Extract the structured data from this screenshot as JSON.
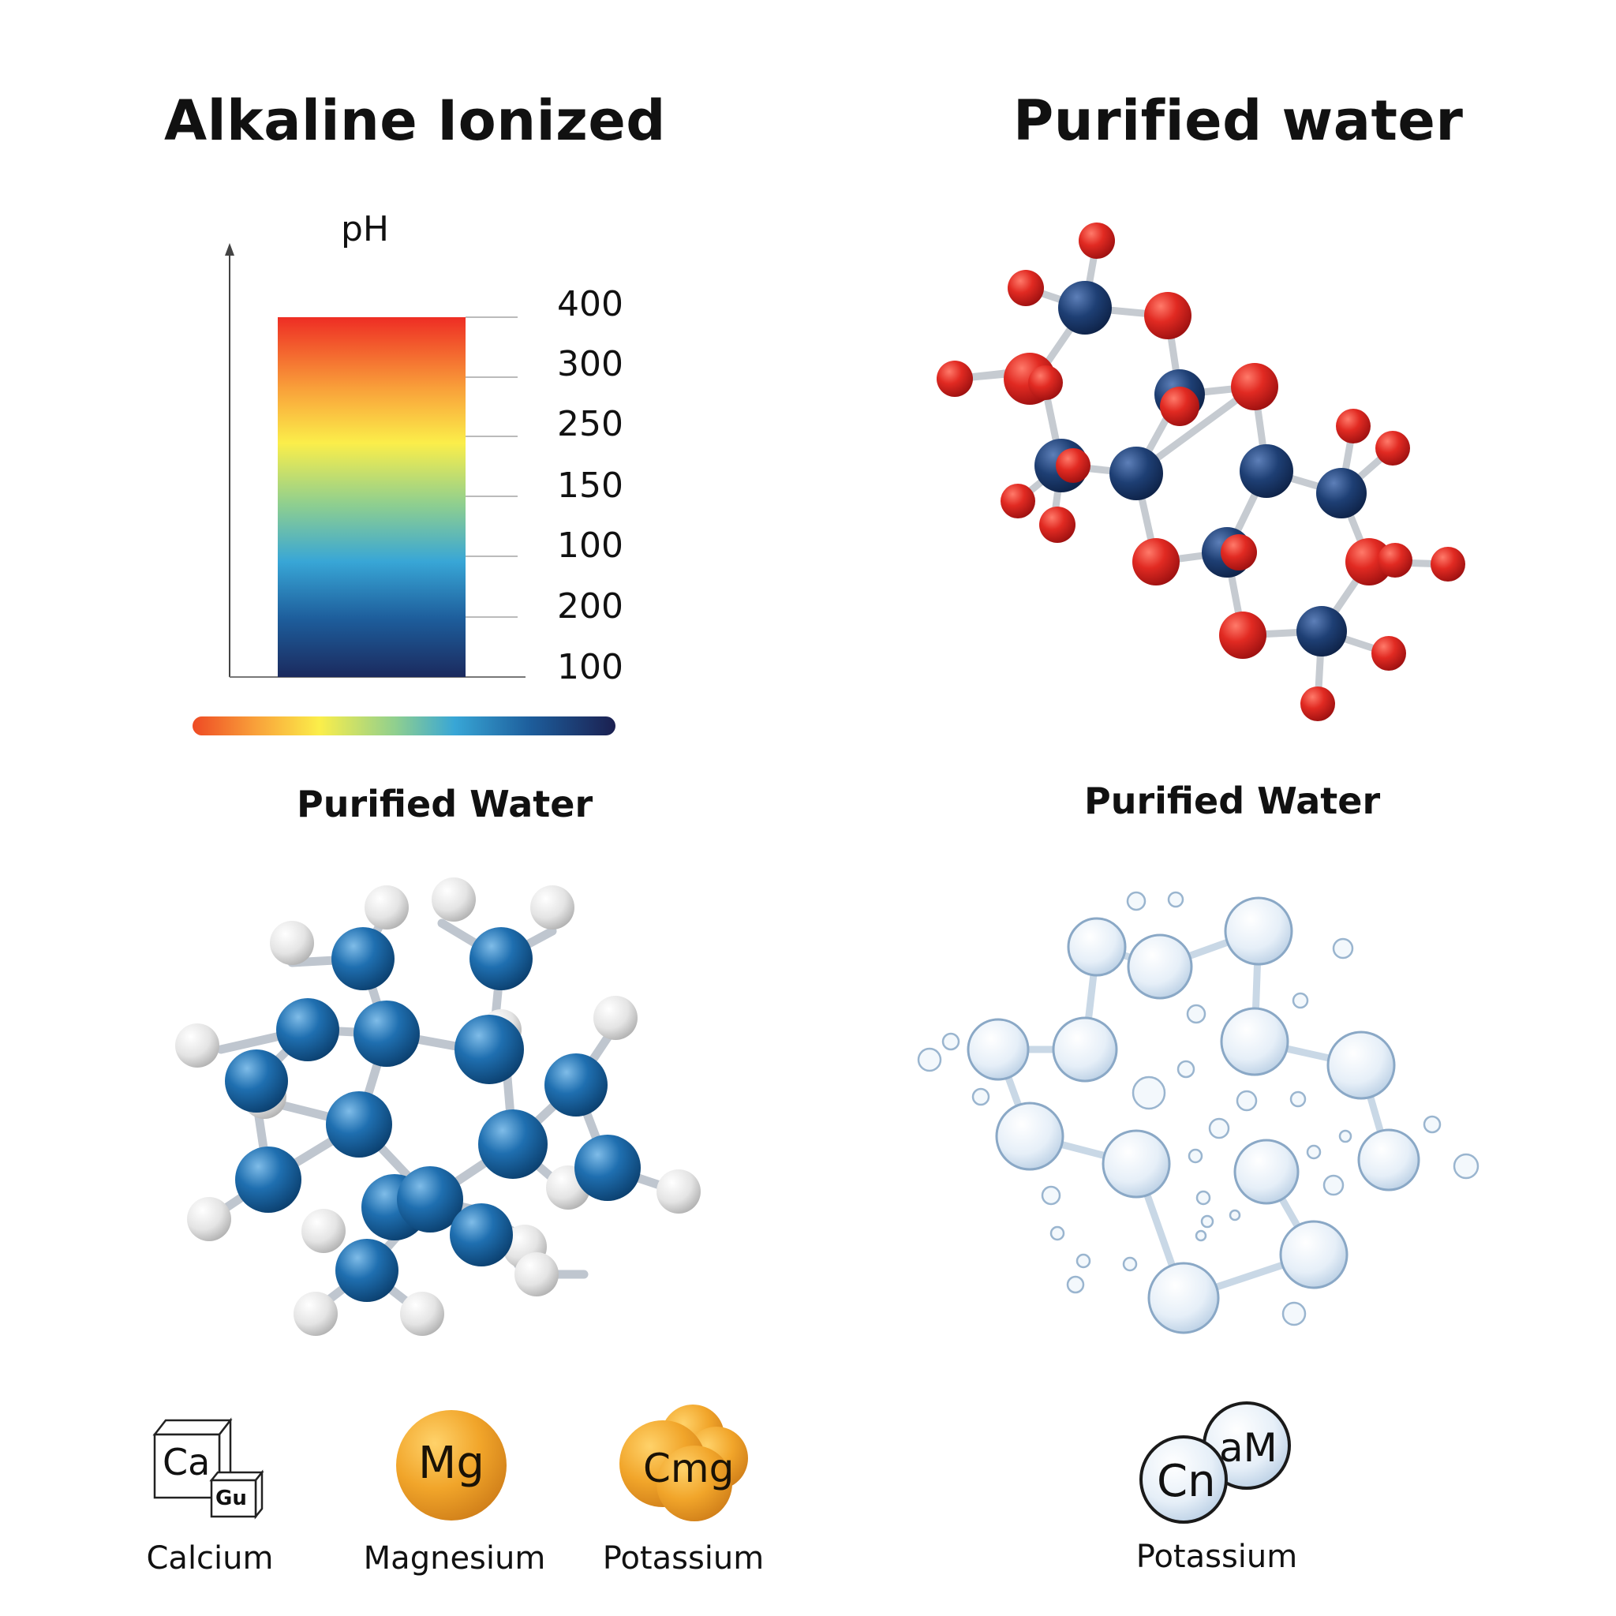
{
  "panels": {
    "top_left_title": "Alkaline Ionized",
    "top_right_title": "Purified water",
    "mid_left_title": "Purified Water",
    "mid_right_title": "Purified Water"
  },
  "ph_scale": {
    "axis_label": "pH",
    "tick_labels": [
      "400",
      "300",
      "250",
      "150",
      "100",
      "200",
      "100"
    ],
    "gradient_colors": [
      "#ee2d24",
      "#f9a13a",
      "#fbee4a",
      "#8fcf8f",
      "#38a6d6",
      "#1d5d9b",
      "#1b2a5e"
    ]
  },
  "colors": {
    "oxygen_red": "#d71f1f",
    "node_navy": "#1e3f74",
    "atom_blue": "#1f6fb0",
    "hydrogen_white": "#e8e8e8",
    "bubble_blue": "#dfeaf5",
    "mineral_gold": "#f1a52a"
  },
  "minerals": [
    {
      "symbol": "Ca",
      "inner_symbol": "Gu",
      "name": "Calcium",
      "icon": "cube-icon"
    },
    {
      "symbol": "Mg",
      "name": "Magnesium",
      "icon": "gold-sphere-icon"
    },
    {
      "symbol": "Cmg",
      "name": "Potassium",
      "icon": "gold-cluster-icon"
    },
    {
      "symbol": "Cn",
      "symbol2": "aM",
      "name": "Potassium",
      "icon": "bubble-pair-icon"
    }
  ]
}
